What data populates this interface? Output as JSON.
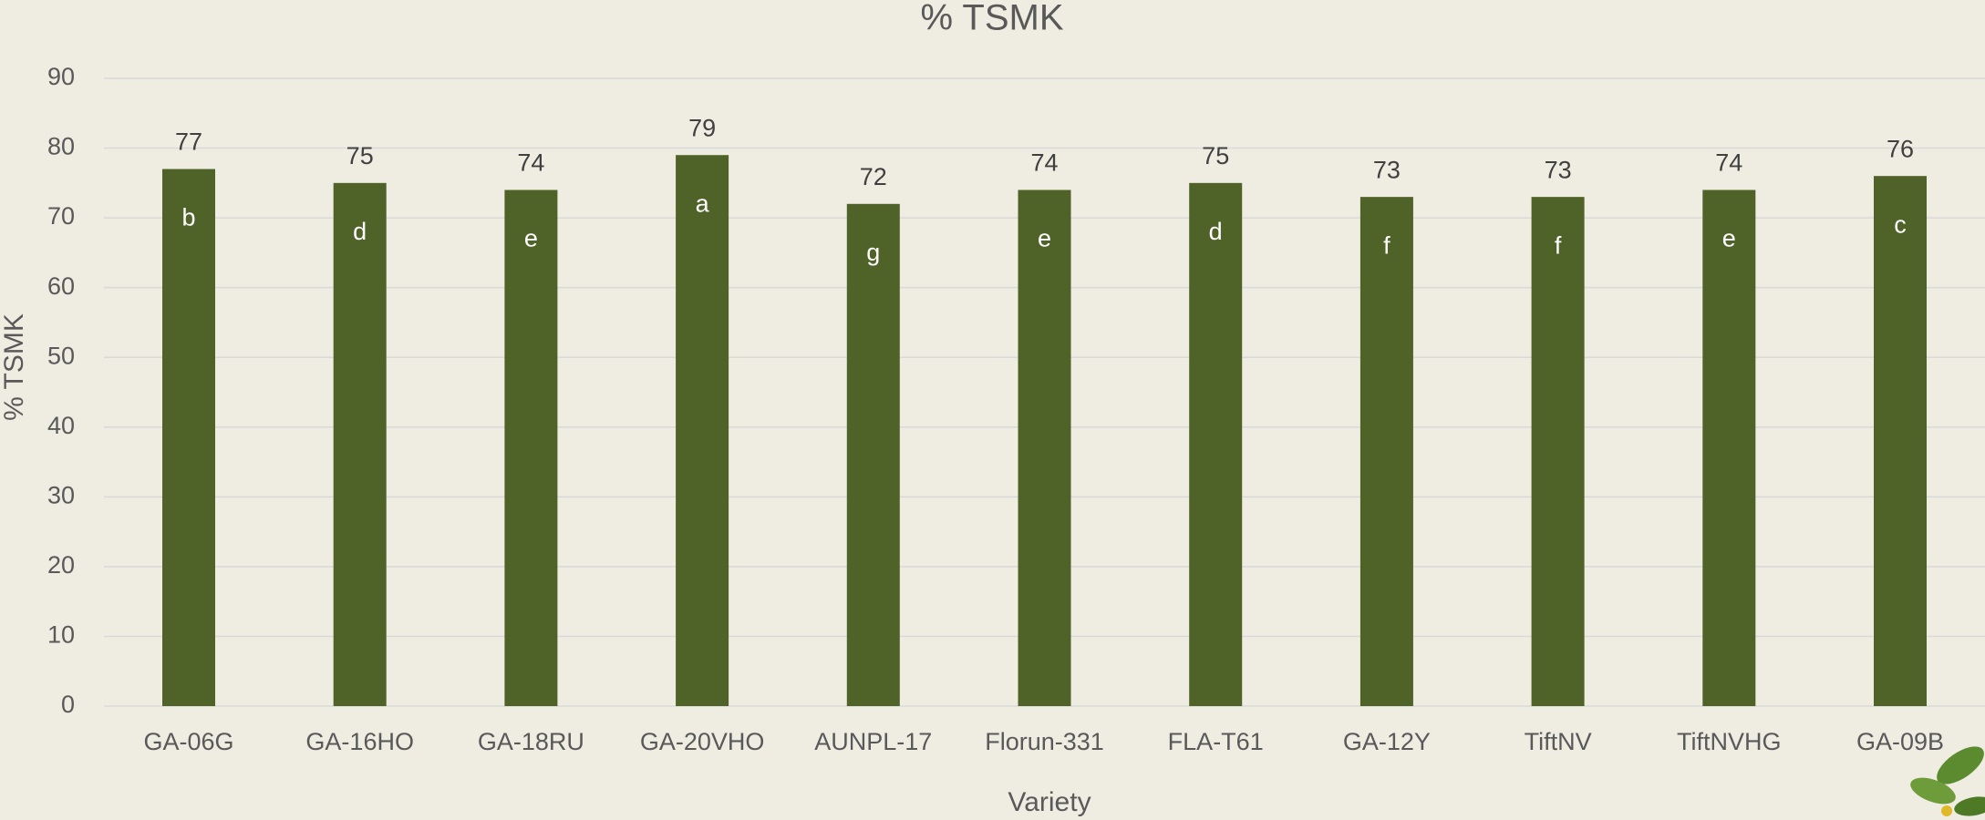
{
  "chart_data": {
    "type": "bar",
    "title": "% TSMK",
    "x_label": "Variety",
    "y_label": "% TSMK",
    "categories": [
      "GA-06G",
      "GA-16HO",
      "GA-18RU",
      "GA-20VHO",
      "AUNPL-17",
      "Florun-331",
      "FLA-T61",
      "GA-12Y",
      "TiftNV",
      "TiftNVHG",
      "GA-09B"
    ],
    "values": [
      77,
      75,
      74,
      79,
      72,
      74,
      75,
      73,
      73,
      74,
      76
    ],
    "annotations": [
      "b",
      "d",
      "e",
      "a",
      "g",
      "e",
      "d",
      "f",
      "f",
      "e",
      "c"
    ],
    "color": "#4f6228",
    "ylim": [
      0,
      90
    ],
    "yticks": [
      0,
      10,
      20,
      30,
      40,
      50,
      60,
      70,
      80,
      90
    ],
    "grid": true
  }
}
